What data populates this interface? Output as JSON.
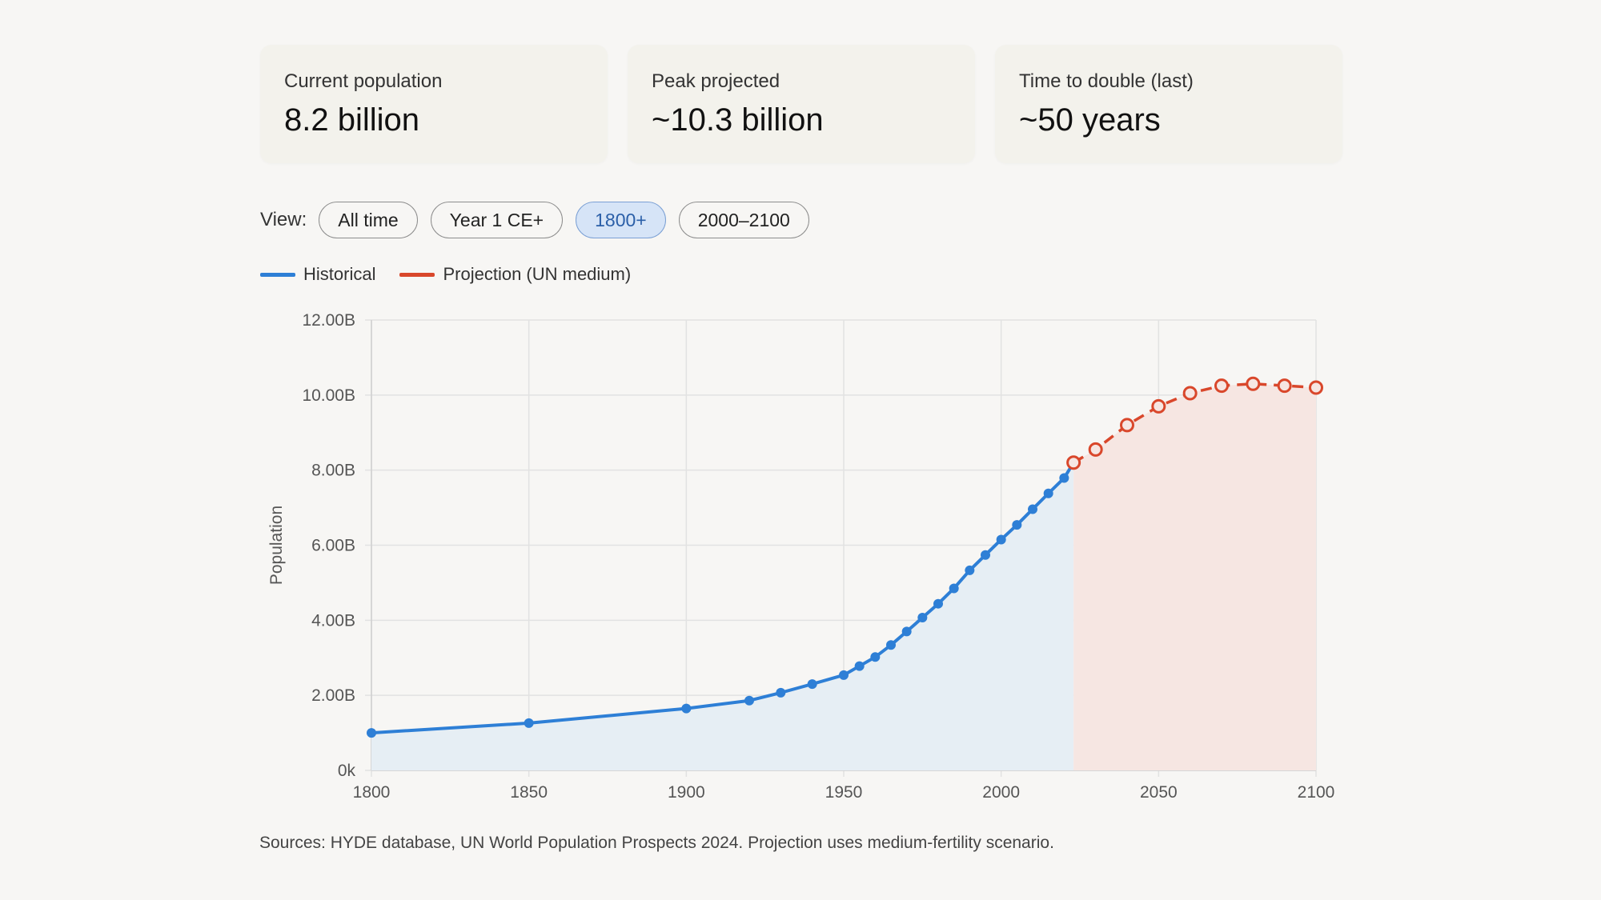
{
  "stats": [
    {
      "label": "Current population",
      "value": "8.2 billion"
    },
    {
      "label": "Peak projected",
      "value": "~10.3 billion"
    },
    {
      "label": "Time to double (last)",
      "value": "~50 years"
    }
  ],
  "view": {
    "label": "View:",
    "options": [
      "All time",
      "Year 1 CE+",
      "1800+",
      "2000–2100"
    ],
    "selected": "1800+"
  },
  "colors": {
    "historical": "#2e7fd6",
    "projection": "#d9472b",
    "historical_fill": "#e6eef4",
    "projection_fill": "#f6e6e2"
  },
  "chart_data": {
    "type": "line",
    "xlim": [
      1800,
      2100
    ],
    "ylim": [
      0,
      12000000000
    ],
    "ylabel": "Population",
    "xlabel": "",
    "xticks": [
      "1800",
      "1850",
      "1900",
      "1950",
      "2000",
      "2050",
      "2100"
    ],
    "yticks": [
      "0k",
      "2.00B",
      "4.00B",
      "6.00B",
      "8.00B",
      "10.00B",
      "12.00B"
    ],
    "grid": true,
    "legend_position": "top-left",
    "series": [
      {
        "name": "Historical",
        "style": "solid",
        "x": [
          1800,
          1850,
          1900,
          1920,
          1930,
          1940,
          1950,
          1955,
          1960,
          1965,
          1970,
          1975,
          1980,
          1985,
          1990,
          1995,
          2000,
          2005,
          2010,
          2015,
          2020,
          2023
        ],
        "y": [
          1000000000,
          1260000000,
          1650000000,
          1860000000,
          2070000000,
          2300000000,
          2540000000,
          2780000000,
          3020000000,
          3340000000,
          3700000000,
          4070000000,
          4440000000,
          4850000000,
          5330000000,
          5740000000,
          6150000000,
          6540000000,
          6960000000,
          7380000000,
          7790000000,
          8200000000
        ]
      },
      {
        "name": "Projection (UN medium)",
        "style": "dashed",
        "x": [
          2023,
          2030,
          2040,
          2050,
          2060,
          2070,
          2080,
          2090,
          2100
        ],
        "y": [
          8200000000,
          8550000000,
          9200000000,
          9700000000,
          10050000000,
          10250000000,
          10300000000,
          10250000000,
          10200000000
        ]
      }
    ]
  },
  "source_note": "Sources: HYDE database, UN World Population Prospects 2024. Projection uses medium-fertility scenario."
}
